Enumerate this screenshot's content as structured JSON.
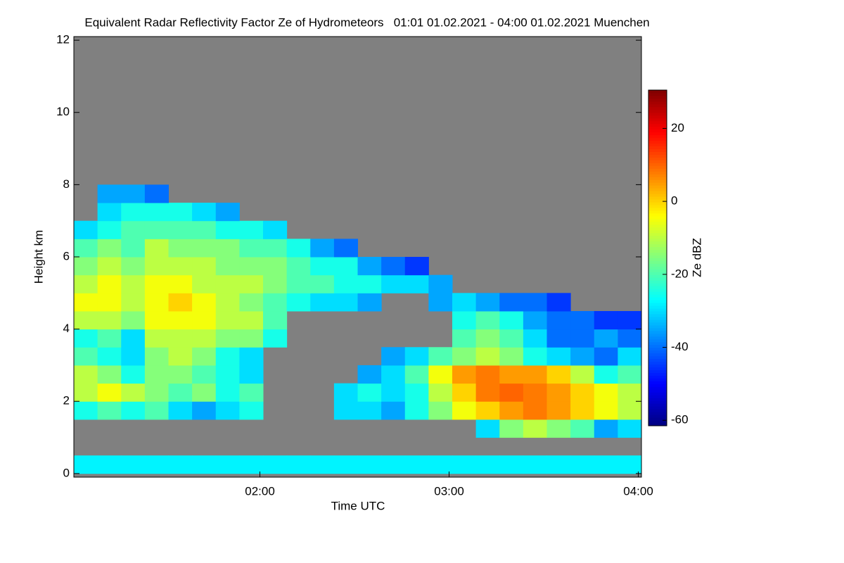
{
  "chart_data": {
    "type": "heatmap",
    "title": "Equivalent Radar Reflectivity Factor Ze of Hydrometeors   01:01 01.02.2021 - 04:00 01.02.2021 Muenchen",
    "x_label": "Time UTC",
    "y_label": "Height km",
    "colorbar_label": "Ze dBZ",
    "colormap": "jet",
    "background": "#808080",
    "xlim": [
      61,
      241
    ],
    "xticks": [
      {
        "value": 120,
        "label": "02:00"
      },
      {
        "value": 180,
        "label": "03:00"
      },
      {
        "value": 240,
        "label": "04:00"
      }
    ],
    "ylim": [
      -0.1,
      12.1
    ],
    "yticks": [
      0,
      2,
      4,
      6,
      8,
      10,
      12
    ],
    "zlim": [
      -61.5,
      30.5
    ],
    "zticks": [
      20,
      0,
      -20,
      -40,
      -60
    ],
    "x": [
      64.75,
      72.25,
      79.75,
      87.25,
      94.75,
      102.25,
      109.75,
      117.25,
      124.75,
      132.25,
      139.75,
      147.25,
      154.75,
      162.25,
      169.75,
      177.25,
      184.75,
      192.25,
      199.75,
      207.25,
      214.75,
      222.25,
      229.75,
      237.25
    ],
    "y": [
      0.25,
      0.75,
      1.25,
      1.75,
      2.25,
      2.75,
      3.25,
      3.75,
      4.25,
      4.75,
      5.25,
      5.75,
      6.25,
      6.75,
      7.25,
      7.75
    ],
    "z": [
      [
        -28,
        -28,
        -28,
        -28,
        -28,
        -28,
        -28,
        -28,
        -28,
        -28,
        -28,
        -28,
        -28,
        -28,
        -28,
        -28,
        -28,
        -28,
        -28,
        -28,
        -28,
        -28,
        -28,
        -28
      ],
      [
        null,
        null,
        null,
        null,
        null,
        null,
        null,
        null,
        null,
        null,
        null,
        null,
        null,
        null,
        null,
        null,
        null,
        null,
        null,
        null,
        null,
        null,
        null,
        null
      ],
      [
        null,
        null,
        null,
        null,
        null,
        null,
        null,
        null,
        null,
        null,
        null,
        null,
        null,
        null,
        null,
        null,
        null,
        -30,
        -15,
        -10,
        -15,
        -20,
        -35,
        -30
      ],
      [
        -25,
        -20,
        -25,
        -20,
        -30,
        -35,
        -30,
        -25,
        null,
        null,
        null,
        -30,
        -30,
        -35,
        -25,
        -15,
        -5,
        0,
        5,
        8,
        5,
        0,
        -5,
        -10
      ],
      [
        -10,
        -5,
        -10,
        -15,
        -20,
        -15,
        -25,
        -20,
        null,
        null,
        null,
        -30,
        -25,
        -30,
        -25,
        -10,
        0,
        8,
        10,
        8,
        5,
        0,
        -5,
        -10
      ],
      [
        -10,
        -15,
        -25,
        -15,
        -15,
        -20,
        -25,
        -30,
        null,
        null,
        null,
        null,
        -35,
        -30,
        -20,
        -5,
        5,
        8,
        5,
        5,
        0,
        -10,
        -25,
        -20
      ],
      [
        -20,
        -25,
        -30,
        -15,
        -10,
        -15,
        -25,
        -30,
        null,
        null,
        null,
        null,
        null,
        -35,
        -30,
        -20,
        -15,
        -10,
        -15,
        -25,
        -30,
        -35,
        -40,
        -30
      ],
      [
        -25,
        -20,
        -30,
        -10,
        -10,
        -10,
        -15,
        -15,
        -25,
        null,
        null,
        null,
        null,
        null,
        null,
        null,
        -20,
        -15,
        -20,
        -30,
        -40,
        -40,
        -35,
        -40
      ],
      [
        -10,
        -10,
        -15,
        -5,
        -5,
        -5,
        -10,
        -10,
        -20,
        null,
        null,
        null,
        null,
        null,
        null,
        null,
        -25,
        -20,
        -25,
        -35,
        -40,
        -40,
        -45,
        -45
      ],
      [
        -5,
        -5,
        -10,
        -5,
        0,
        -5,
        -10,
        -15,
        -20,
        -25,
        -30,
        -30,
        -35,
        null,
        null,
        -35,
        -30,
        -35,
        -40,
        -40,
        -45,
        null,
        null,
        null
      ],
      [
        -10,
        -5,
        -10,
        -5,
        -5,
        -10,
        -10,
        -10,
        -15,
        -20,
        -20,
        -25,
        -25,
        -30,
        -30,
        -35,
        null,
        null,
        null,
        null,
        null,
        null,
        null,
        null
      ],
      [
        -15,
        -10,
        -15,
        -10,
        -10,
        -10,
        -15,
        -15,
        -15,
        -20,
        -25,
        -25,
        -35,
        -40,
        -45,
        null,
        null,
        null,
        null,
        null,
        null,
        null,
        null,
        null
      ],
      [
        -20,
        -15,
        -20,
        -10,
        -15,
        -15,
        -15,
        -20,
        -20,
        -25,
        -35,
        -40,
        null,
        null,
        null,
        null,
        null,
        null,
        null,
        null,
        null,
        null,
        null,
        null
      ],
      [
        -30,
        -25,
        -20,
        -20,
        -20,
        -20,
        -25,
        -25,
        -30,
        null,
        null,
        null,
        null,
        null,
        null,
        null,
        null,
        null,
        null,
        null,
        null,
        null,
        null,
        null
      ],
      [
        null,
        -30,
        -25,
        -25,
        -25,
        -30,
        -35,
        null,
        null,
        null,
        null,
        null,
        null,
        null,
        null,
        null,
        null,
        null,
        null,
        null,
        null,
        null,
        null,
        null
      ],
      [
        null,
        -35,
        -35,
        -40,
        null,
        null,
        null,
        null,
        null,
        null,
        null,
        null,
        null,
        null,
        null,
        null,
        null,
        null,
        null,
        null,
        null,
        null,
        null,
        null
      ]
    ]
  }
}
